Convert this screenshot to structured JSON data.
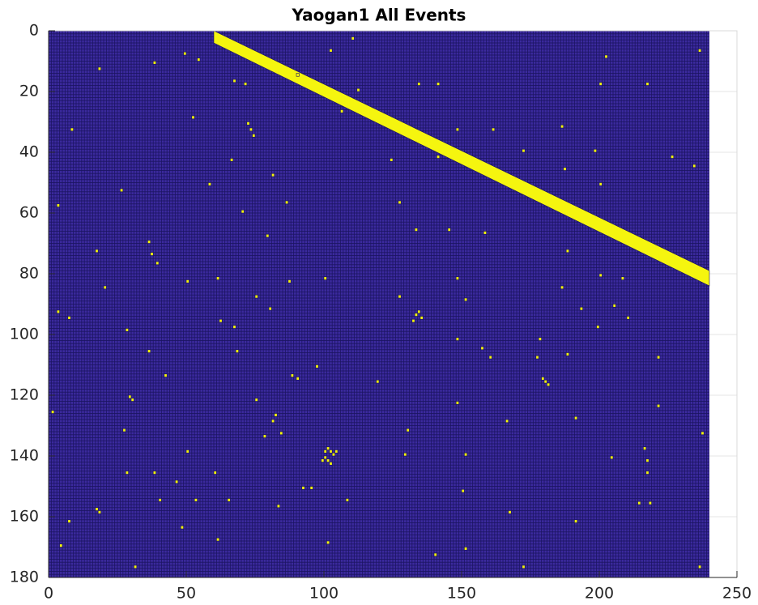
{
  "chart_data": {
    "type": "image-events",
    "title": "Yaogan1 All Events",
    "xlim": [
      0,
      250
    ],
    "xticks": [
      0,
      50,
      100,
      150,
      200,
      250
    ],
    "ylim": [
      0,
      180
    ],
    "yticks": [
      0,
      20,
      40,
      60,
      80,
      100,
      120,
      140,
      160,
      180
    ],
    "y_reversed": true,
    "grid": true,
    "image_size": [
      240,
      180
    ],
    "background_color": "#3b2a9e",
    "edge_color": "#1a1360",
    "color": "#f5f50f",
    "streak": {
      "x": [
        60,
        240
      ],
      "y_top": [
        0,
        79
      ],
      "y_bottom": [
        4,
        84
      ]
    },
    "events": {
      "x": [
        18,
        38,
        49,
        54,
        110,
        102,
        67,
        71,
        90,
        112,
        134,
        141,
        106,
        52,
        72,
        73,
        74,
        8,
        86,
        161,
        148,
        172,
        200,
        217,
        202,
        236,
        186,
        198,
        187,
        226,
        234,
        124,
        141,
        200,
        58,
        66,
        81,
        86,
        26,
        3,
        70,
        127,
        79,
        133,
        145,
        158,
        36,
        37,
        39,
        188,
        17,
        100,
        61,
        50,
        87,
        148,
        200,
        208,
        186,
        20,
        127,
        75,
        3,
        7,
        80,
        151,
        193,
        205,
        210,
        62,
        67,
        28,
        199,
        148,
        178,
        157,
        68,
        36,
        188,
        160,
        177,
        221,
        42,
        88,
        90,
        97,
        119,
        75,
        29,
        30,
        148,
        221,
        191,
        166,
        82,
        81,
        130,
        27,
        84,
        78,
        237,
        50,
        60,
        28,
        151,
        216,
        217,
        129,
        204,
        38,
        217,
        46,
        92,
        95,
        83,
        17,
        18,
        108,
        53,
        150,
        40,
        214,
        218,
        65,
        167,
        191,
        7,
        48,
        61,
        101,
        4,
        31,
        140,
        172,
        151,
        236,
        133,
        134,
        135,
        132,
        179,
        180,
        181,
        100,
        101,
        102,
        103,
        99,
        100,
        101,
        102,
        104,
        1
      ],
      "y": [
        12,
        10,
        7,
        9,
        2,
        6,
        16,
        17,
        14,
        19,
        17,
        17,
        26,
        28,
        30,
        32,
        34,
        32,
        56,
        32,
        32,
        39,
        17,
        17,
        8,
        6,
        31,
        39,
        45,
        41,
        44,
        42,
        41,
        50,
        50,
        42,
        47,
        56,
        52,
        57,
        59,
        56,
        67,
        65,
        65,
        66,
        69,
        73,
        76,
        72,
        72,
        81,
        81,
        82,
        82,
        81,
        80,
        81,
        84,
        84,
        87,
        87,
        92,
        94,
        91,
        88,
        91,
        90,
        94,
        95,
        97,
        98,
        97,
        101,
        101,
        104,
        105,
        105,
        106,
        107,
        107,
        107,
        113,
        113,
        114,
        110,
        115,
        121,
        120,
        121,
        122,
        123,
        127,
        128,
        126,
        128,
        131,
        131,
        132,
        133,
        132,
        138,
        145,
        145,
        139,
        137,
        141,
        139,
        140,
        145,
        145,
        148,
        150,
        150,
        156,
        157,
        158,
        154,
        154,
        151,
        154,
        155,
        155,
        154,
        158,
        161,
        161,
        163,
        167,
        168,
        169,
        176,
        172,
        176,
        170,
        176,
        93,
        92,
        94,
        95,
        114,
        115,
        116,
        138,
        137,
        138,
        139,
        141,
        140,
        141,
        142,
        138,
        125
      ]
    }
  }
}
